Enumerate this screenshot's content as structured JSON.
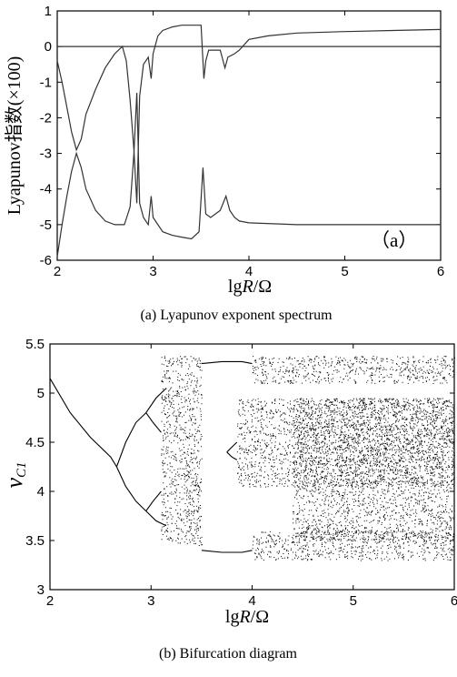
{
  "chart_data": [
    {
      "type": "line",
      "panel_tag": "（a）",
      "caption": "(a) Lyapunov exponent spectrum",
      "xlabel_main": "lg",
      "xlabel_R": "R",
      "xlabel_unit": "/Ω",
      "ylabel": "Lyapunov指数(×100)",
      "xlim": [
        2,
        6
      ],
      "ylim": [
        -6,
        1
      ],
      "xticks": [
        "2",
        "3",
        "4",
        "5",
        "6"
      ],
      "yticks": [
        "1",
        "0",
        "-1",
        "-2",
        "-3",
        "-4",
        "-5",
        "-6"
      ],
      "series": [
        {
          "x": [
            2.0,
            2.05,
            2.1,
            2.15,
            2.2,
            2.25,
            2.3,
            2.4,
            2.5,
            2.6,
            2.68,
            2.72,
            2.76,
            2.8,
            2.83,
            2.86,
            2.9,
            2.95,
            2.98,
            3.0,
            3.05,
            3.1,
            3.2,
            3.3,
            3.4,
            3.5,
            3.53,
            3.55,
            3.58,
            3.62,
            3.7,
            3.75,
            3.78,
            3.85,
            3.9,
            4.0,
            4.2,
            4.5,
            5.0,
            5.5,
            6.0
          ],
          "y": [
            -0.4,
            -1.0,
            -1.7,
            -2.4,
            -2.9,
            -2.6,
            -1.9,
            -1.2,
            -0.6,
            -0.2,
            0.0,
            -0.4,
            -1.5,
            -2.9,
            -4.4,
            -1.4,
            -0.5,
            -0.3,
            -0.9,
            -0.2,
            0.3,
            0.45,
            0.55,
            0.6,
            0.6,
            0.6,
            -0.9,
            -0.4,
            -0.1,
            -0.1,
            -0.1,
            -0.6,
            -0.3,
            -0.2,
            -0.1,
            0.2,
            0.3,
            0.38,
            0.42,
            0.45,
            0.48
          ]
        },
        {
          "x": [
            2.0,
            6.0
          ],
          "y": [
            0.0,
            0.0
          ]
        },
        {
          "x": [
            2.0,
            2.05,
            2.1,
            2.15,
            2.2,
            2.25,
            2.3,
            2.4,
            2.5,
            2.6,
            2.7,
            2.76,
            2.8,
            2.83,
            2.86,
            2.9,
            2.95,
            2.98,
            3.0,
            3.1,
            3.2,
            3.3,
            3.4,
            3.48,
            3.52,
            3.55,
            3.6,
            3.7,
            3.76,
            3.8,
            3.85,
            3.9,
            4.0,
            4.5,
            5.0,
            5.5,
            6.0
          ],
          "y": [
            -5.9,
            -5.0,
            -4.2,
            -3.5,
            -3.0,
            -3.4,
            -4.0,
            -4.6,
            -4.9,
            -5.0,
            -5.0,
            -4.5,
            -3.0,
            -1.3,
            -4.4,
            -4.8,
            -5.0,
            -4.2,
            -4.8,
            -5.2,
            -5.3,
            -5.35,
            -5.4,
            -5.2,
            -3.4,
            -4.7,
            -4.8,
            -4.6,
            -4.2,
            -4.6,
            -4.8,
            -4.9,
            -4.95,
            -5.0,
            -5.0,
            -5.0,
            -5.0
          ]
        }
      ]
    },
    {
      "type": "scatter",
      "caption": "(b) Bifurcation diagram",
      "xlabel_main": "lg",
      "xlabel_R": "R",
      "xlabel_unit": "/Ω",
      "ylabel_main": "v",
      "ylabel_sub": "C1",
      "xlim": [
        2,
        6
      ],
      "ylim": [
        3,
        5.5
      ],
      "xticks": [
        "2",
        "3",
        "4",
        "5",
        "6"
      ],
      "yticks": [
        "5.5",
        "5",
        "4.5",
        "4",
        "3.5",
        "3"
      ],
      "branches": [
        {
          "x": [
            2.0,
            2.2,
            2.4,
            2.6,
            2.66
          ],
          "y": [
            5.15,
            4.8,
            4.55,
            4.35,
            4.25
          ]
        },
        {
          "x": [
            2.66,
            2.75,
            2.85,
            2.95
          ],
          "y": [
            4.25,
            4.5,
            4.7,
            4.8
          ]
        },
        {
          "x": [
            2.66,
            2.75,
            2.85,
            2.95
          ],
          "y": [
            4.25,
            4.05,
            3.9,
            3.8
          ]
        },
        {
          "x": [
            2.95,
            3.05,
            3.15
          ],
          "y": [
            4.8,
            4.95,
            5.05
          ]
        },
        {
          "x": [
            2.95,
            3.02,
            3.1
          ],
          "y": [
            4.8,
            4.7,
            4.6
          ]
        },
        {
          "x": [
            2.95,
            3.02,
            3.1
          ],
          "y": [
            3.8,
            3.9,
            4.0
          ]
        },
        {
          "x": [
            2.95,
            3.05,
            3.15
          ],
          "y": [
            3.8,
            3.7,
            3.65
          ]
        },
        {
          "x": [
            3.5,
            3.7,
            3.9,
            4.0
          ],
          "y": [
            5.3,
            5.32,
            5.32,
            5.3
          ]
        },
        {
          "x": [
            3.5,
            3.7,
            3.9,
            4.0
          ],
          "y": [
            3.4,
            3.38,
            3.38,
            3.4
          ]
        },
        {
          "x": [
            3.75,
            3.8,
            3.85
          ],
          "y": [
            4.4,
            4.45,
            4.5
          ]
        },
        {
          "x": [
            3.75,
            3.8,
            3.85
          ],
          "y": [
            4.4,
            4.35,
            4.32
          ]
        }
      ],
      "chaotic_bands": [
        {
          "x_range": [
            3.1,
            3.5
          ],
          "y_range": [
            3.45,
            5.38
          ]
        },
        {
          "x_range": [
            3.85,
            6.0
          ],
          "y_range": [
            4.05,
            4.95
          ]
        },
        {
          "x_range": [
            4.4,
            6.0
          ],
          "y_range": [
            3.5,
            4.95
          ]
        },
        {
          "x_range": [
            4.0,
            6.0
          ],
          "y_range": [
            5.1,
            5.38
          ]
        },
        {
          "x_range": [
            4.0,
            6.0
          ],
          "y_range": [
            3.3,
            3.6
          ]
        }
      ]
    }
  ]
}
